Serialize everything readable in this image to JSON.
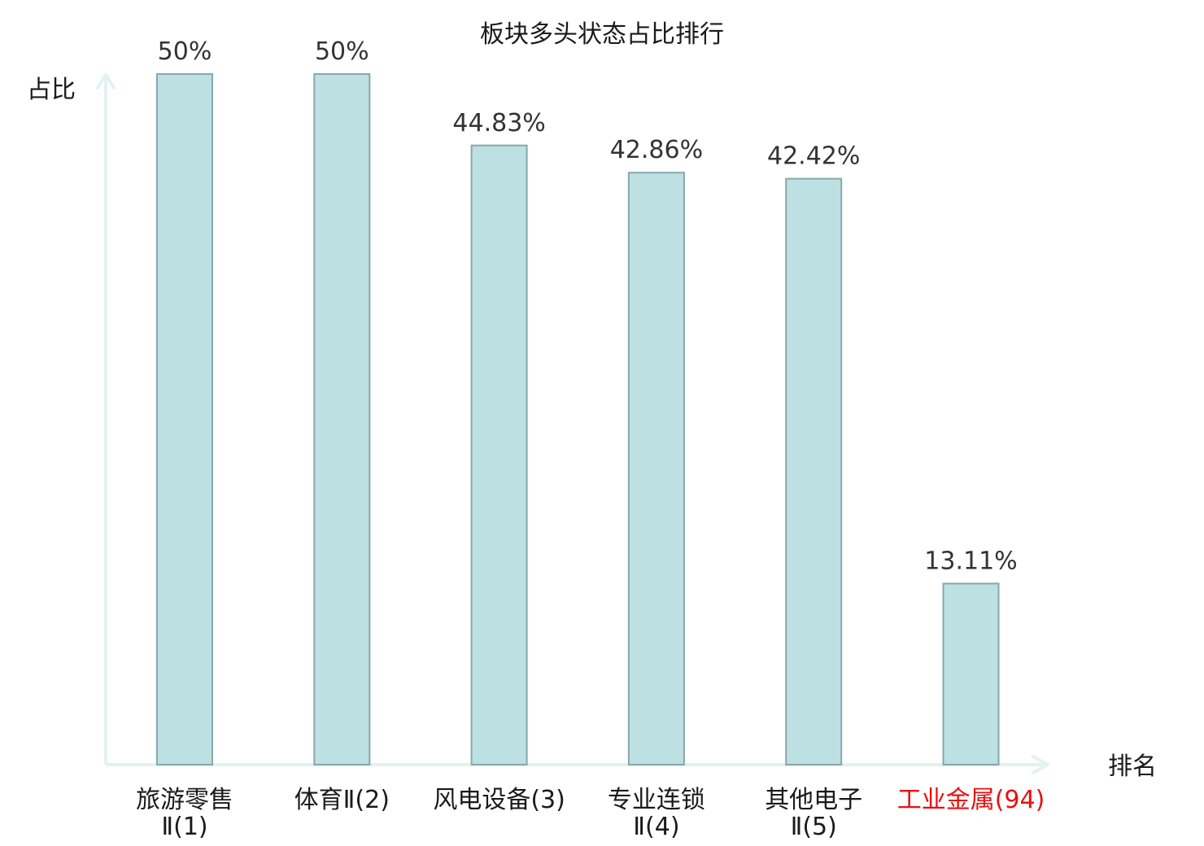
{
  "chart_data": {
    "type": "bar",
    "title": "板块多头状态占比排行",
    "ylabel": "占比",
    "xlabel": "排名",
    "ylim": [
      0,
      50
    ],
    "categories": [
      {
        "lines": [
          "旅游零售",
          "Ⅱ(1)"
        ],
        "highlight": false
      },
      {
        "lines": [
          "体育Ⅱ(2)"
        ],
        "highlight": false
      },
      {
        "lines": [
          "风电设备(3)"
        ],
        "highlight": false
      },
      {
        "lines": [
          "专业连锁",
          "Ⅱ(4)"
        ],
        "highlight": false
      },
      {
        "lines": [
          "其他电子",
          "Ⅱ(5)"
        ],
        "highlight": false
      },
      {
        "lines": [
          "工业金属(94)"
        ],
        "highlight": true
      }
    ],
    "values": [
      50,
      50,
      44.83,
      42.86,
      42.42,
      13.11
    ],
    "value_labels": [
      "50%",
      "50%",
      "44.83%",
      "42.86%",
      "42.42%",
      "13.11%"
    ],
    "colors": {
      "bar_fill": "#bde0e3",
      "bar_stroke": "#86a8ab",
      "axis": "#e0f3f1",
      "label_text": "#1a1a1a",
      "highlight_text": "#e81010"
    }
  }
}
